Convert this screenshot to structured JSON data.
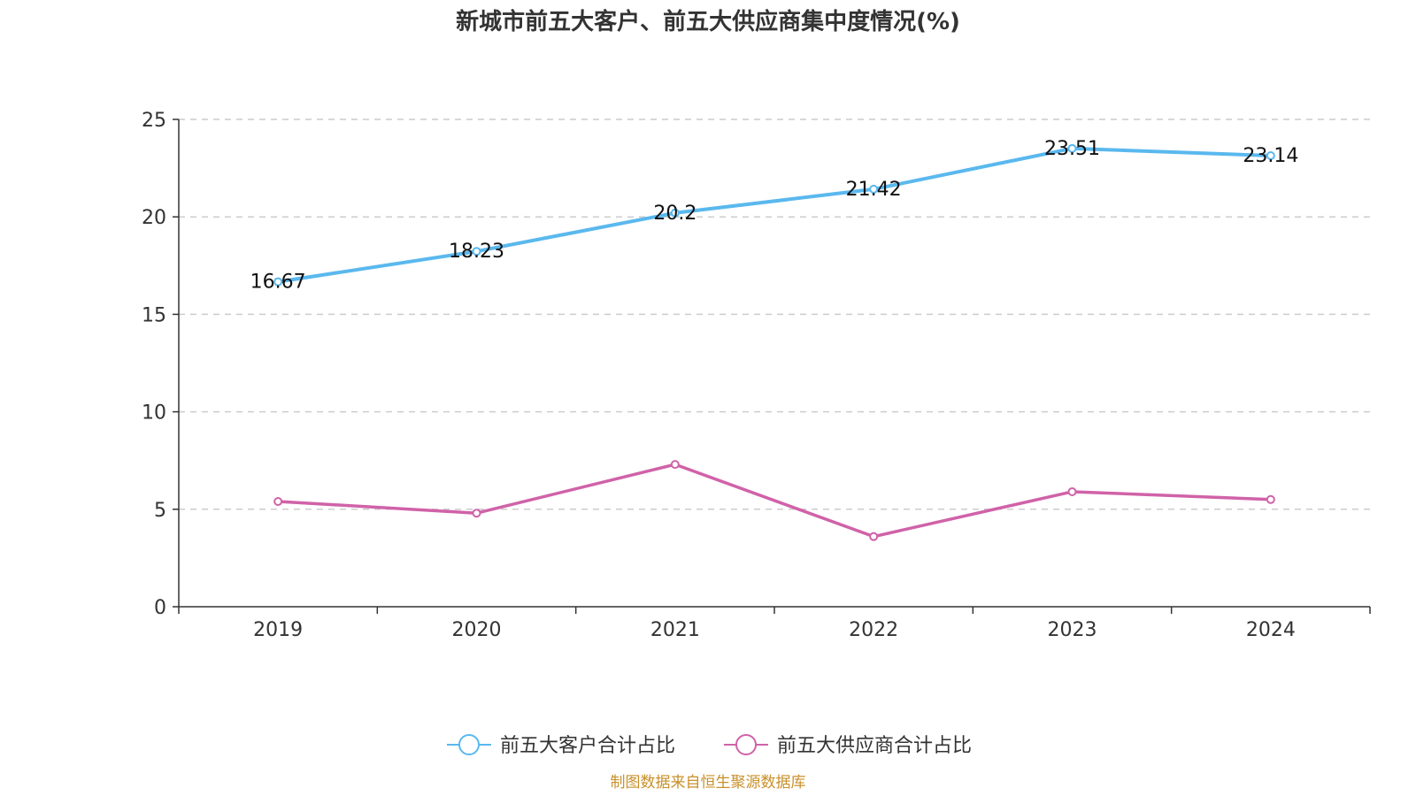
{
  "chart_data": {
    "type": "line",
    "title": "新城市前五大客户、前五大供应商集中度情况(%)",
    "categories": [
      "2019",
      "2020",
      "2021",
      "2022",
      "2023",
      "2024"
    ],
    "ylim": [
      0,
      25
    ],
    "yticks": [
      0,
      5,
      10,
      15,
      20,
      25
    ],
    "grid": true,
    "legend_position": "bottom",
    "series": [
      {
        "name": "前五大客户合计占比",
        "color": "#5ab8ee",
        "values": [
          16.67,
          18.23,
          20.2,
          21.42,
          23.51,
          23.14
        ],
        "labels": [
          "16.67",
          "18.23",
          "20.2",
          "21.42",
          "23.51",
          "23.14"
        ],
        "show_labels": true
      },
      {
        "name": "前五大供应商合计占比",
        "color": "#d062a8",
        "values": [
          5.4,
          4.8,
          7.3,
          3.6,
          5.9,
          5.5
        ],
        "show_labels": false
      }
    ],
    "source": "制图数据来自恒生聚源数据库"
  }
}
